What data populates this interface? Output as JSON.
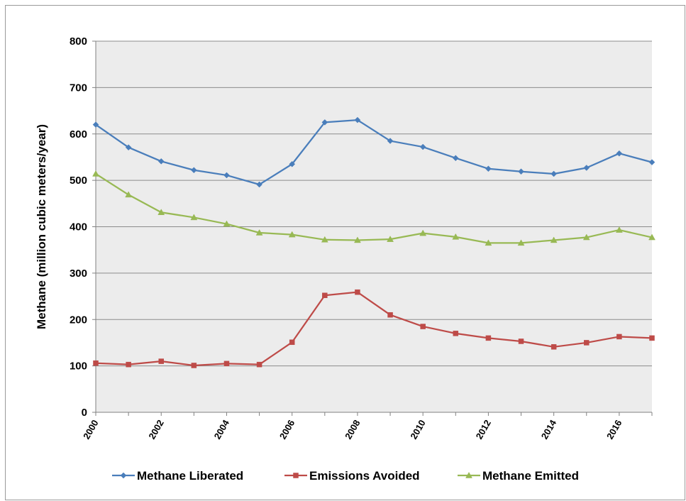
{
  "chart_data": {
    "type": "line",
    "title": "",
    "xlabel": "",
    "ylabel": "Methane (million cubic meters/year)",
    "xlim": [
      2000,
      2017
    ],
    "ylim": [
      0,
      800
    ],
    "y_ticks": [
      0,
      100,
      200,
      300,
      400,
      500,
      600,
      700,
      800
    ],
    "x_tick_labels": [
      "2000",
      "2002",
      "2004",
      "2006",
      "2008",
      "2010",
      "2012",
      "2014",
      "2016"
    ],
    "grid": true,
    "legend_position": "bottom",
    "plot_background": "#ececec",
    "x": [
      2000,
      2001,
      2002,
      2003,
      2004,
      2005,
      2006,
      2007,
      2008,
      2009,
      2010,
      2011,
      2012,
      2013,
      2014,
      2015,
      2016,
      2017
    ],
    "series": [
      {
        "name": "Methane Liberated",
        "color": "#4a7ebb",
        "marker": "diamond",
        "values": [
          620,
          571,
          541,
          522,
          511,
          491,
          535,
          625,
          630,
          585,
          572,
          548,
          525,
          519,
          514,
          527,
          558,
          539
        ]
      },
      {
        "name": "Emissions Avoided",
        "color": "#be4b48",
        "marker": "square",
        "values": [
          106,
          103,
          110,
          101,
          105,
          103,
          151,
          252,
          259,
          210,
          185,
          170,
          160,
          153,
          141,
          150,
          163,
          160
        ]
      },
      {
        "name": "Methane Emitted",
        "color": "#98b954",
        "marker": "triangle",
        "values": [
          514,
          469,
          431,
          420,
          406,
          387,
          383,
          372,
          371,
          373,
          386,
          378,
          365,
          365,
          371,
          377,
          393,
          377
        ]
      }
    ]
  }
}
